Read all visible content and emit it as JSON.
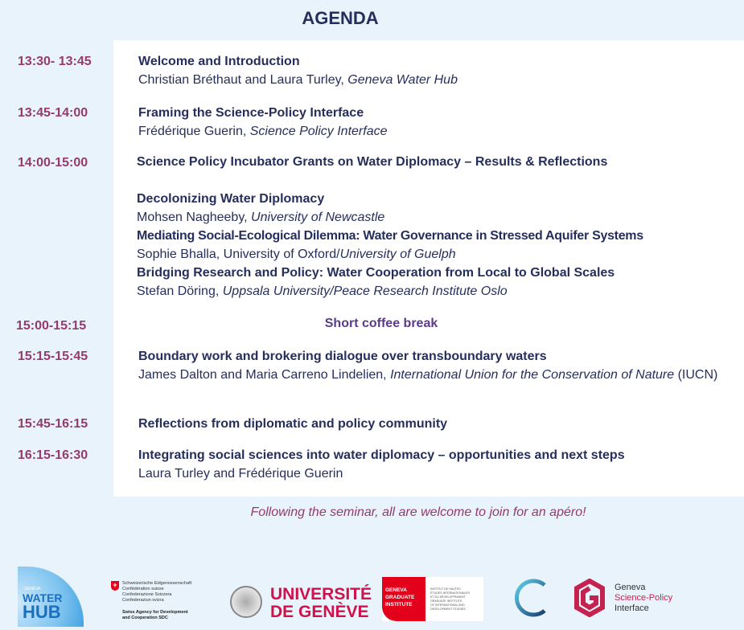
{
  "title": "AGENDA",
  "sessions": [
    {
      "time": "13:30- 13:45",
      "title": "Welcome and Introduction",
      "speaker": "Christian Bréthaut and Laura Turley, ",
      "affiliation": "Geneva Water Hub"
    },
    {
      "time": "13:45-14:00",
      "title": "Framing the Science-Policy Interface",
      "speaker": "Frédérique Guerin, ",
      "affiliation": "Science Policy Interface"
    },
    {
      "time": "14:00-15:00",
      "title": "Science Policy Incubator Grants on Water Diplomacy – Results & Reflections",
      "talks": [
        {
          "title": "Decolonizing Water Diplomacy",
          "speaker": "Mohsen Nagheeby, ",
          "affiliation": "University of Newcastle"
        },
        {
          "title": "Mediating Social-Ecological Dilemma: Water Governance in Stressed Aquifer Systems",
          "speaker": "Sophie Bhalla, University of Oxford/",
          "affiliation": "University of Guelph"
        },
        {
          "title": "Bridging Research and Policy: Water Cooperation from Local to Global Scales",
          "speaker": "Stefan Döring, ",
          "affiliation": "Uppsala University/Peace Research Institute Oslo"
        }
      ]
    },
    {
      "time": "15:00-15:15",
      "title": "Short coffee break"
    },
    {
      "time": "15:15-15:45",
      "title": "Boundary work and brokering dialogue over transboundary waters",
      "speaker": "James Dalton and Maria Carreno Lindelien, ",
      "affiliation": "International Union for the Conservation of Nature",
      "suffix": " (IUCN)"
    },
    {
      "time": "15:45-16:15",
      "title": "Reflections from diplomatic and policy community"
    },
    {
      "time": "16:15-16:30",
      "title": "Integrating social sciences into water diplomacy – opportunities and next steps",
      "speaker": "Laura Turley and Frédérique Guerin"
    }
  ],
  "footer": "Following the seminar, all are welcome to join for an apéro!",
  "logos": {
    "water_hub": {
      "small": "GENEVA",
      "line1": "WATER",
      "line2": "HUB"
    },
    "sdc": {
      "lines": [
        "Schweizerische Eidgenossenschaft",
        "Confédération suisse",
        "Confederazione Svizzera",
        "Confederaziun svizra"
      ],
      "agency": [
        "Swiss Agency for Development",
        "and Cooperation SDC"
      ]
    },
    "unige": {
      "line1": "UNIVERSITÉ",
      "line2": "DE GENÈVE"
    },
    "graduate": {
      "left": [
        "GENEVA",
        "GRADUATE",
        "INSTITUTE"
      ],
      "right": [
        "INSTITUT DE HAUTES",
        "ÉTUDES INTERNATIONALES",
        "ET DU DÉVELOPPEMENT",
        "GRADUATE INSTITUTE",
        "OF INTERNATIONAL AND",
        "DEVELOPMENT STUDIES"
      ]
    },
    "spi": {
      "line1": "Geneva",
      "line2": "Science-Policy",
      "line3": "Interface"
    }
  },
  "colors": {
    "background": "#e8f3fc",
    "navy": "#262f5c",
    "time": "#953a6e",
    "coffee": "#5a3a8c",
    "red": "#e2001a",
    "spi": "#c4234f"
  }
}
